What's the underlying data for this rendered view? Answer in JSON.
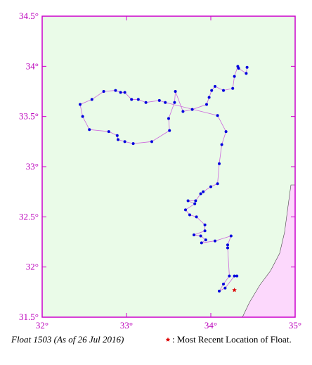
{
  "chart_data": {
    "type": "line",
    "title": "Float 1503 (As of 26 Jul 2016)",
    "series": [
      {
        "color": "#0000dd",
        "line_color": "#cc66dd",
        "x": [
          34.43,
          34.42,
          34.33,
          34.32,
          34.28,
          34.26,
          34.15,
          34.05,
          34.01,
          33.98,
          33.95,
          33.78,
          33.67,
          33.58,
          33.57,
          33.5,
          33.51,
          33.3,
          33.08,
          32.98,
          32.9,
          32.89,
          32.79,
          32.56,
          32.48,
          32.45,
          32.59,
          32.73,
          32.87,
          32.93,
          32.98,
          33.06,
          33.14,
          33.23,
          33.39,
          33.46,
          34.08,
          34.18,
          34.13,
          34.1,
          34.08,
          34.0,
          33.91,
          33.88,
          33.82,
          33.73,
          33.81,
          33.7,
          33.75,
          33.83,
          33.93,
          33.93,
          33.8,
          33.88,
          33.94,
          33.89,
          34.05,
          34.24,
          34.2,
          34.2,
          34.22,
          34.15,
          34.1,
          34.17,
          34.28,
          34.31
        ],
        "y": [
          33.99,
          33.93,
          33.98,
          34.0,
          33.9,
          33.78,
          33.76,
          33.8,
          33.76,
          33.69,
          33.62,
          33.57,
          33.55,
          33.75,
          33.64,
          33.48,
          33.36,
          33.25,
          33.23,
          33.25,
          33.27,
          33.31,
          33.35,
          33.37,
          33.5,
          33.62,
          33.67,
          33.75,
          33.76,
          33.74,
          33.74,
          33.67,
          33.67,
          33.64,
          33.66,
          33.64,
          33.51,
          33.35,
          33.22,
          33.03,
          32.83,
          32.8,
          32.75,
          32.73,
          32.66,
          32.66,
          32.63,
          32.57,
          32.52,
          32.5,
          32.42,
          32.36,
          32.32,
          32.31,
          32.27,
          32.24,
          32.26,
          32.31,
          32.22,
          32.19,
          31.91,
          31.83,
          31.76,
          31.79,
          31.91,
          31.91
        ]
      }
    ],
    "latest": {
      "x": 34.28,
      "y": 31.77,
      "color": "#dd0000",
      "label": ": Most Recent Location of Float."
    },
    "xlim": [
      32,
      35
    ],
    "ylim": [
      31.5,
      34.5
    ],
    "xticks": [
      {
        "value": 32,
        "label": "32°"
      },
      {
        "value": 33,
        "label": "33°"
      },
      {
        "value": 34,
        "label": "34°"
      },
      {
        "value": 35,
        "label": "35°"
      }
    ],
    "yticks": [
      {
        "value": 31.5,
        "label": "31.5°"
      },
      {
        "value": 32,
        "label": "32°"
      },
      {
        "value": 32.5,
        "label": "32.5°"
      },
      {
        "value": 33,
        "label": "33°"
      },
      {
        "value": 33.5,
        "label": "33.5°"
      },
      {
        "value": 34,
        "label": "34°"
      },
      {
        "value": 34.5,
        "label": "34.5°"
      }
    ]
  }
}
